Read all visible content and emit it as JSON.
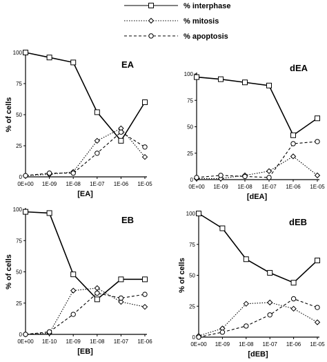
{
  "legend": {
    "entries": [
      {
        "label": "% interphase",
        "marker": "square",
        "dash": "solid"
      },
      {
        "label": "% mitosis",
        "marker": "diamond",
        "dash": "dotted"
      },
      {
        "label": "% apoptosis",
        "marker": "circle",
        "dash": "dashed"
      }
    ]
  },
  "chart_data": [
    {
      "type": "line",
      "title": "EA",
      "xlabel": "[EA]",
      "ylabel": "% of cells",
      "categories": [
        "0E+00",
        "1E-09",
        "1E-08",
        "1E-07",
        "1E-06",
        "1E-05"
      ],
      "yticks": [
        "0",
        "25",
        "50",
        "75",
        "100"
      ],
      "ylim": [
        0,
        100
      ],
      "series": [
        {
          "name": "% interphase",
          "values": [
            100,
            96,
            92,
            52,
            29,
            60
          ]
        },
        {
          "name": "% mitosis",
          "values": [
            1,
            2,
            4,
            29,
            39,
            16
          ]
        },
        {
          "name": "% apoptosis",
          "values": [
            1,
            3,
            3,
            19,
            36,
            24
          ]
        }
      ]
    },
    {
      "type": "line",
      "title": "dEA",
      "xlabel": "[dEA]",
      "ylabel": "",
      "categories": [
        "0E+00",
        "1E-09",
        "1E-08",
        "1E-07",
        "1E-06",
        "1E-05"
      ],
      "yticks": [
        "0",
        "25",
        "50",
        "75",
        "100"
      ],
      "ylim": [
        0,
        100
      ],
      "series": [
        {
          "name": "% interphase",
          "values": [
            97,
            95,
            92,
            89,
            42,
            58
          ]
        },
        {
          "name": "% mitosis",
          "values": [
            1,
            1,
            4,
            8,
            22,
            4
          ]
        },
        {
          "name": "% apoptosis",
          "values": [
            2,
            4,
            3,
            2,
            34,
            36
          ]
        }
      ]
    },
    {
      "type": "line",
      "title": "EB",
      "xlabel": "[EB]",
      "ylabel": "% of cells",
      "categories": [
        "0E+00",
        "1E-10",
        "1E-09",
        "1E-08",
        "1E-07",
        "1E-06"
      ],
      "yticks": [
        "0",
        "25",
        "50",
        "75",
        "100"
      ],
      "ylim": [
        0,
        100
      ],
      "series": [
        {
          "name": "% interphase",
          "values": [
            98,
            97,
            48,
            28,
            44,
            44
          ]
        },
        {
          "name": "% mitosis",
          "values": [
            0,
            1,
            35,
            37,
            26,
            22
          ]
        },
        {
          "name": "% apoptosis",
          "values": [
            0,
            2,
            16,
            33,
            29,
            32
          ]
        }
      ]
    },
    {
      "type": "line",
      "title": "dEB",
      "xlabel": "[dEB]",
      "ylabel": "% of cells",
      "categories": [
        "0E+00",
        "1E-09",
        "1E-08",
        "1E-07",
        "1E-06",
        "1E-05"
      ],
      "yticks": [
        "0",
        "25",
        "50",
        "75",
        "100"
      ],
      "ylim": [
        0,
        100
      ],
      "series": [
        {
          "name": "% interphase",
          "values": [
            100,
            88,
            63,
            52,
            44,
            62
          ]
        },
        {
          "name": "% mitosis",
          "values": [
            1,
            7,
            27,
            28,
            23,
            12
          ]
        },
        {
          "name": "% apoptosis",
          "values": [
            0,
            4,
            9,
            18,
            31,
            24
          ]
        }
      ]
    }
  ]
}
